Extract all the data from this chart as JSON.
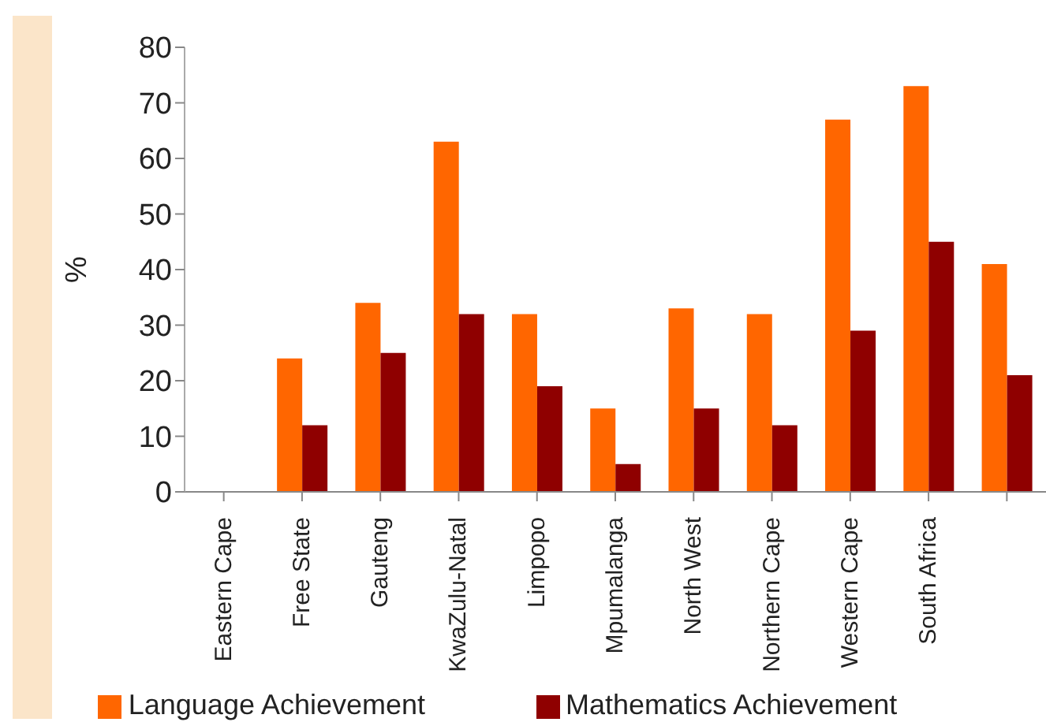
{
  "chart_data": {
    "type": "bar",
    "ylabel": "%",
    "categories": [
      "Eastern Cape",
      "Free State",
      "Gauteng",
      "KwaZulu-Natal",
      "Limpopo",
      "Mpumalanga",
      "North West",
      "Northern Cape",
      "Western Cape",
      "South Africa",
      null
    ],
    "series": [
      {
        "name": "Language Achievement",
        "color": "#ff6600",
        "values": [
          null,
          24,
          34,
          63,
          32,
          15,
          33,
          32,
          67,
          73,
          41
        ]
      },
      {
        "name": "Mathematics Achievement",
        "color": "#8f0000",
        "values": [
          null,
          12,
          25,
          32,
          19,
          5,
          15,
          12,
          29,
          45,
          21
        ]
      }
    ],
    "ylim": [
      0,
      80
    ],
    "yticks": [
      0,
      10,
      20,
      30,
      40,
      50,
      60,
      70,
      80
    ],
    "grid": false,
    "legend": "bottom"
  }
}
